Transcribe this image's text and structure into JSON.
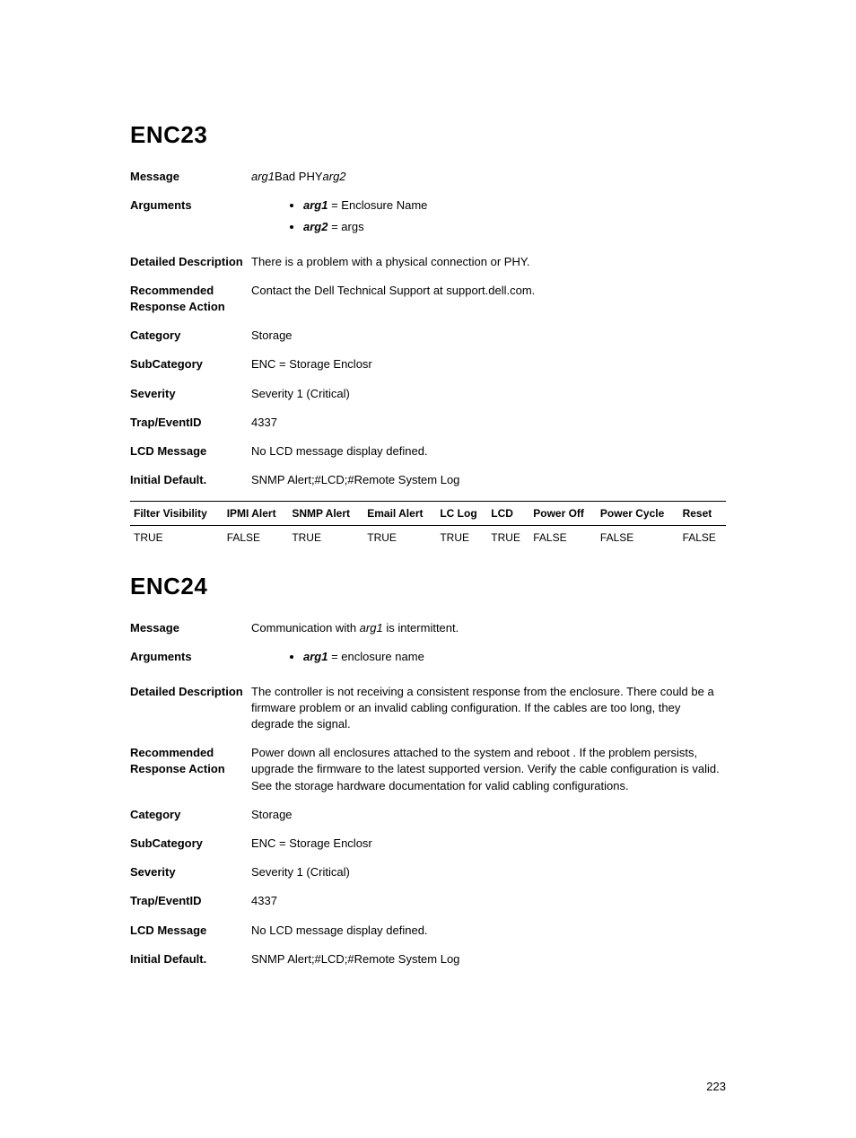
{
  "page_number": "223",
  "sections": [
    {
      "id": "ENC23",
      "message_prefix_italic": "arg1",
      "message_mid": "Bad PHY",
      "message_suffix_italic": "arg2",
      "arguments": [
        {
          "name": "arg1",
          "desc": "Enclosure Name"
        },
        {
          "name": "arg2",
          "desc": "args"
        }
      ],
      "detailed_description": "There is a problem with a physical connection or PHY.",
      "recommended_action": "Contact the Dell Technical Support at support.dell.com.",
      "category": "Storage",
      "subcategory": "ENC = Storage Enclosr",
      "severity": "Severity 1 (Critical)",
      "trap_event_id": "4337",
      "lcd_message": "No LCD message display defined.",
      "initial_default": "SNMP Alert;#LCD;#Remote System Log",
      "filter_headers": [
        "Filter Visibility",
        "IPMI Alert",
        "SNMP Alert",
        "Email Alert",
        "LC Log",
        "LCD",
        "Power Off",
        "Power Cycle",
        "Reset"
      ],
      "filter_values": [
        "TRUE",
        "FALSE",
        "TRUE",
        "TRUE",
        "TRUE",
        "TRUE",
        "FALSE",
        "FALSE",
        "FALSE"
      ]
    },
    {
      "id": "ENC24",
      "message_prefix": "Communication with",
      "message_italic": "arg1",
      "message_suffix": "is intermittent.",
      "arguments": [
        {
          "name": "arg1",
          "desc": "enclosure name"
        }
      ],
      "detailed_description": "The controller is not receiving a consistent response from the enclosure. There could be a firmware problem or an invalid cabling configuration. If the cables are too long, they degrade the signal.",
      "recommended_action": "Power down all enclosures attached to the system and reboot . If the problem persists, upgrade the firmware to the latest supported version. Verify the cable configuration is valid. See the storage hardware documentation for valid cabling configurations.",
      "category": "Storage",
      "subcategory": "ENC = Storage Enclosr",
      "severity": "Severity 1 (Critical)",
      "trap_event_id": "4337",
      "lcd_message": "No LCD message display defined.",
      "initial_default": "SNMP Alert;#LCD;#Remote System Log"
    }
  ],
  "labels": {
    "message": "Message",
    "arguments": "Arguments",
    "detailed_description": "Detailed Description",
    "recommended_action": "Recommended Response Action",
    "category": "Category",
    "subcategory": "SubCategory",
    "severity": "Severity",
    "trap_event_id": "Trap/EventID",
    "lcd_message": "LCD Message",
    "initial_default": "Initial Default."
  }
}
